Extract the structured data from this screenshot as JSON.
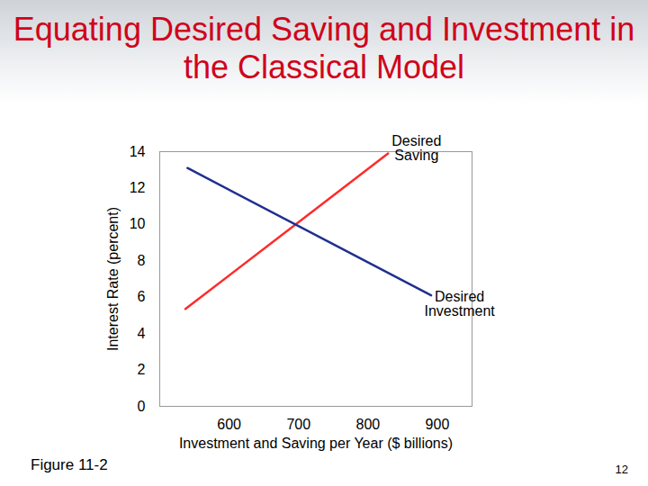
{
  "chart_data": {
    "type": "line",
    "title": "Equating Desired Saving and Investment in the Classical Model",
    "xlabel": "Investment and Saving per Year ($ billions)",
    "ylabel": "Interest Rate (percent)",
    "xlim": [
      500,
      950
    ],
    "xticks": [
      600,
      700,
      800,
      900
    ],
    "ylim": [
      0,
      14
    ],
    "yticks": [
      0,
      2,
      4,
      6,
      8,
      10,
      12,
      14
    ],
    "grid": false,
    "series": [
      {
        "name": "Desired Saving",
        "color": "#ff2a2a",
        "x": [
          537,
          829
        ],
        "values": [
          5.35,
          13.9
        ],
        "label_x": 870,
        "label_y": 14.2
      },
      {
        "name": "Desired Investment",
        "color": "#1f2f8f",
        "x": [
          540,
          891
        ],
        "values": [
          13.1,
          6.1
        ],
        "label_x": 932,
        "label_y": 5.6
      }
    ],
    "figure_label": "Figure 11-2",
    "page": "12"
  }
}
